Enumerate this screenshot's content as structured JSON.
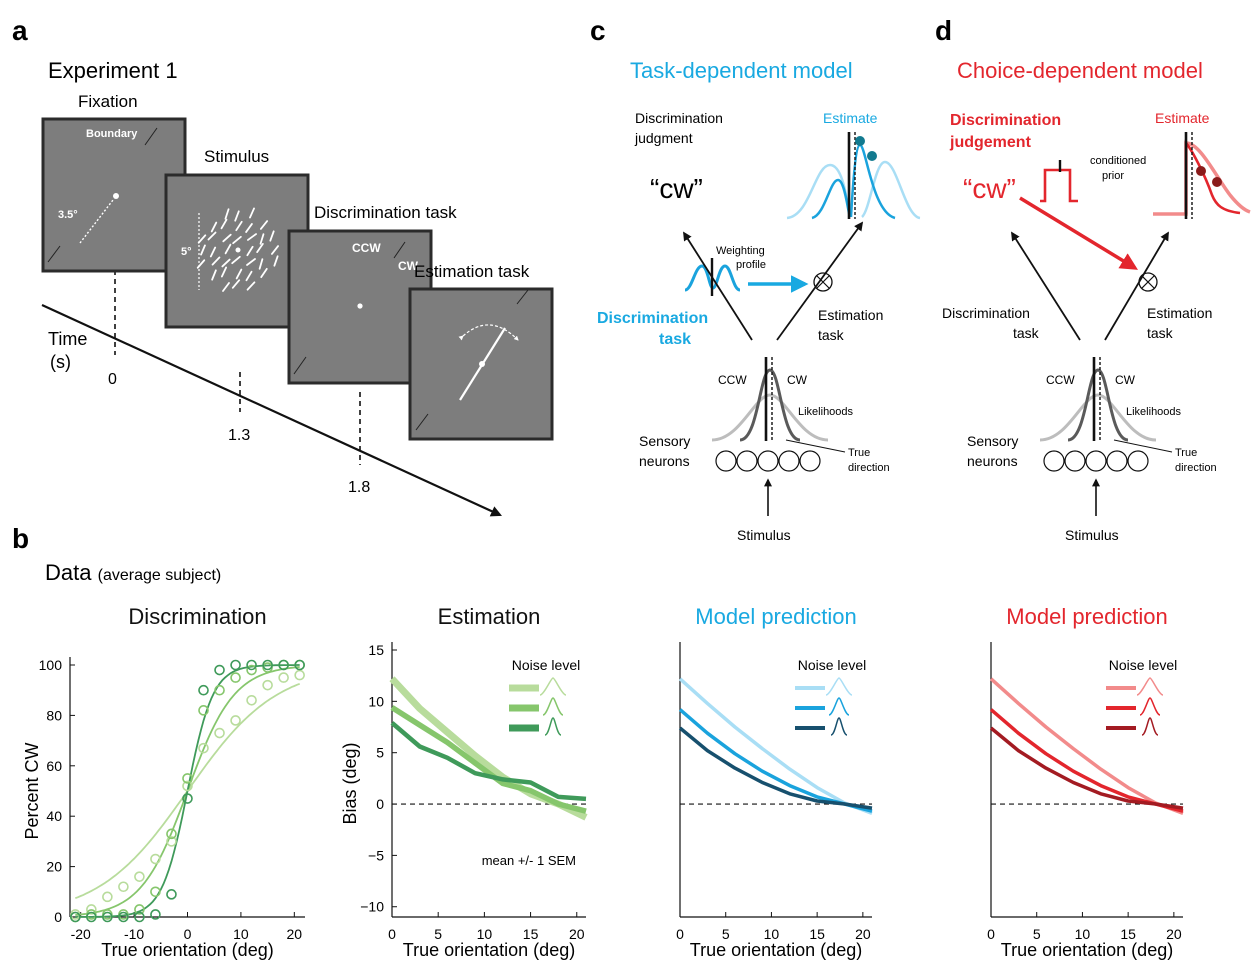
{
  "panels": {
    "a": "a",
    "b": "b",
    "c": "c",
    "d": "d"
  },
  "exp": {
    "title": "Experiment 1",
    "fixation": "Fixation",
    "stimulus": "Stimulus",
    "discrimination_task": "Discrimination task",
    "estimation_task": "Estimation task",
    "boundary": "Boundary",
    "ecc": "3.5°",
    "size": "5°",
    "ccw": "CCW",
    "cw": "CW",
    "time_label": "Time",
    "time_unit": "(s)",
    "times": [
      "0",
      "1.3",
      "1.8"
    ]
  },
  "data_heading": {
    "main": "Data",
    "sub": "(average subject)"
  },
  "task_model": {
    "title": "Task-dependent model",
    "disc_judgment": [
      "Discrimination",
      "judgment"
    ],
    "cw_quote": "“cw”",
    "estimate": "Estimate",
    "weighting": [
      "Weighting",
      "profile"
    ],
    "disc_task": [
      "Discrimination",
      "task"
    ],
    "est_task": [
      "Estimation",
      "task"
    ],
    "ccw": "CCW",
    "cw": "CW",
    "likelihoods": "Likelihoods",
    "sensory": [
      "Sensory",
      "neurons"
    ],
    "true_dir": [
      "True",
      "direction"
    ],
    "stimulus": "Stimulus"
  },
  "choice_model": {
    "title": "Choice-dependent model",
    "disc_judgement": [
      "Discrimination",
      "judgement"
    ],
    "cw_quote": "“cw”",
    "estimate": "Estimate",
    "conditioned": [
      "conditioned",
      "prior"
    ],
    "disc_task": [
      "Discrimination",
      "task"
    ],
    "est_task": [
      "Estimation",
      "task"
    ],
    "ccw": "CCW",
    "cw": "CW",
    "likelihoods": "Likelihoods",
    "sensory": [
      "Sensory",
      "neurons"
    ],
    "true_dir": [
      "True",
      "direction"
    ],
    "stimulus": "Stimulus"
  },
  "colors": {
    "cyan": "#19a9e1",
    "red": "#e3262d",
    "green": [
      "#b8dc9c",
      "#86c66c",
      "#3f9a5a"
    ],
    "blue": [
      "#a9def5",
      "#1aa3dd",
      "#17506e"
    ],
    "reds": [
      "#f28b8b",
      "#e3262d",
      "#a31b22"
    ]
  },
  "chart_data": [
    {
      "type": "scatter",
      "title": "Discrimination",
      "xlabel": "True orientation (deg)",
      "ylabel": "Percent CW",
      "xlim": [
        -22,
        22
      ],
      "ylim": [
        0,
        100
      ],
      "xticks": [
        -20,
        -10,
        0,
        10,
        20
      ],
      "yticks": [
        0,
        20,
        40,
        60,
        80,
        100
      ],
      "series": [
        {
          "x": [
            -21,
            -18,
            -15,
            -12,
            -9,
            -6,
            -3,
            0,
            3,
            6,
            9,
            12,
            15,
            18,
            21
          ],
          "y": [
            1,
            3,
            8,
            12,
            16,
            23,
            30,
            52,
            67,
            73,
            78,
            86,
            92,
            95,
            96
          ]
        },
        {
          "x": [
            -21,
            -18,
            -15,
            -12,
            -9,
            -6,
            -3,
            0,
            3,
            6,
            9,
            12,
            15,
            18,
            21
          ],
          "y": [
            0,
            1,
            1,
            1,
            3,
            10,
            33,
            55,
            82,
            90,
            95,
            98,
            99,
            100,
            100
          ]
        },
        {
          "x": [
            -21,
            -18,
            -15,
            -12,
            -9,
            -6,
            -3,
            0,
            3,
            6,
            9,
            12,
            15,
            18,
            21
          ],
          "y": [
            0,
            0,
            0,
            0,
            0,
            1,
            9,
            47,
            90,
            98,
            100,
            100,
            100,
            100,
            100
          ]
        }
      ]
    },
    {
      "type": "line",
      "title": "Estimation",
      "xlabel": "True orientation (deg)",
      "ylabel": "Bias (deg)",
      "xlim": [
        0,
        21
      ],
      "ylim": [
        -11,
        15
      ],
      "xticks": [
        0,
        5,
        10,
        15,
        20
      ],
      "yticks": [
        -10,
        -5,
        0,
        5,
        10,
        15
      ],
      "legend_title": "Noise level",
      "annotation": "mean +/- 1 SEM",
      "series": [
        {
          "x": [
            0,
            3,
            6,
            9,
            12,
            15,
            18,
            21
          ],
          "y": [
            12.2,
            9.3,
            7.0,
            4.7,
            2.6,
            1.0,
            0.0,
            -1.3
          ]
        },
        {
          "x": [
            0,
            3,
            6,
            9,
            12,
            15,
            18,
            21
          ],
          "y": [
            9.4,
            7.7,
            6.0,
            4.0,
            2.0,
            1.3,
            0.0,
            -0.7
          ]
        },
        {
          "x": [
            0,
            3,
            6,
            9,
            12,
            15,
            18,
            21
          ],
          "y": [
            7.9,
            5.6,
            4.5,
            3.0,
            2.4,
            2.1,
            0.7,
            0.5
          ]
        }
      ]
    },
    {
      "type": "line",
      "title": "Model prediction",
      "xlabel": "True orientation (deg)",
      "xlim": [
        0,
        21
      ],
      "ylim": [
        -11,
        15
      ],
      "xticks": [
        0,
        5,
        10,
        15,
        20
      ],
      "legend_title": "Noise level",
      "series": [
        {
          "x": [
            0,
            3,
            6,
            9,
            12,
            15,
            18,
            21
          ],
          "y": [
            12.2,
            9.8,
            7.5,
            5.4,
            3.4,
            1.6,
            0.1,
            -0.9
          ]
        },
        {
          "x": [
            0,
            3,
            6,
            9,
            12,
            15,
            18,
            21
          ],
          "y": [
            9.2,
            6.9,
            4.9,
            3.2,
            1.8,
            0.7,
            0.0,
            -0.7
          ]
        },
        {
          "x": [
            0,
            3,
            6,
            9,
            12,
            15,
            18,
            21
          ],
          "y": [
            7.4,
            5.2,
            3.5,
            2.1,
            1.0,
            0.3,
            0.0,
            -0.4
          ]
        }
      ]
    },
    {
      "type": "line",
      "title": "Model prediction",
      "xlabel": "True orientation (deg)",
      "xlim": [
        0,
        21
      ],
      "ylim": [
        -11,
        15
      ],
      "xticks": [
        0,
        5,
        10,
        15,
        20
      ],
      "legend_title": "Noise level",
      "series": [
        {
          "x": [
            0,
            3,
            6,
            9,
            12,
            15,
            18,
            21
          ],
          "y": [
            12.2,
            9.8,
            7.5,
            5.4,
            3.4,
            1.6,
            0.1,
            -0.9
          ]
        },
        {
          "x": [
            0,
            3,
            6,
            9,
            12,
            15,
            18,
            21
          ],
          "y": [
            9.2,
            6.9,
            4.9,
            3.2,
            1.8,
            0.7,
            0.0,
            -0.7
          ]
        },
        {
          "x": [
            0,
            3,
            6,
            9,
            12,
            15,
            18,
            21
          ],
          "y": [
            7.4,
            5.2,
            3.5,
            2.1,
            1.0,
            0.3,
            0.0,
            -0.4
          ]
        }
      ]
    }
  ]
}
